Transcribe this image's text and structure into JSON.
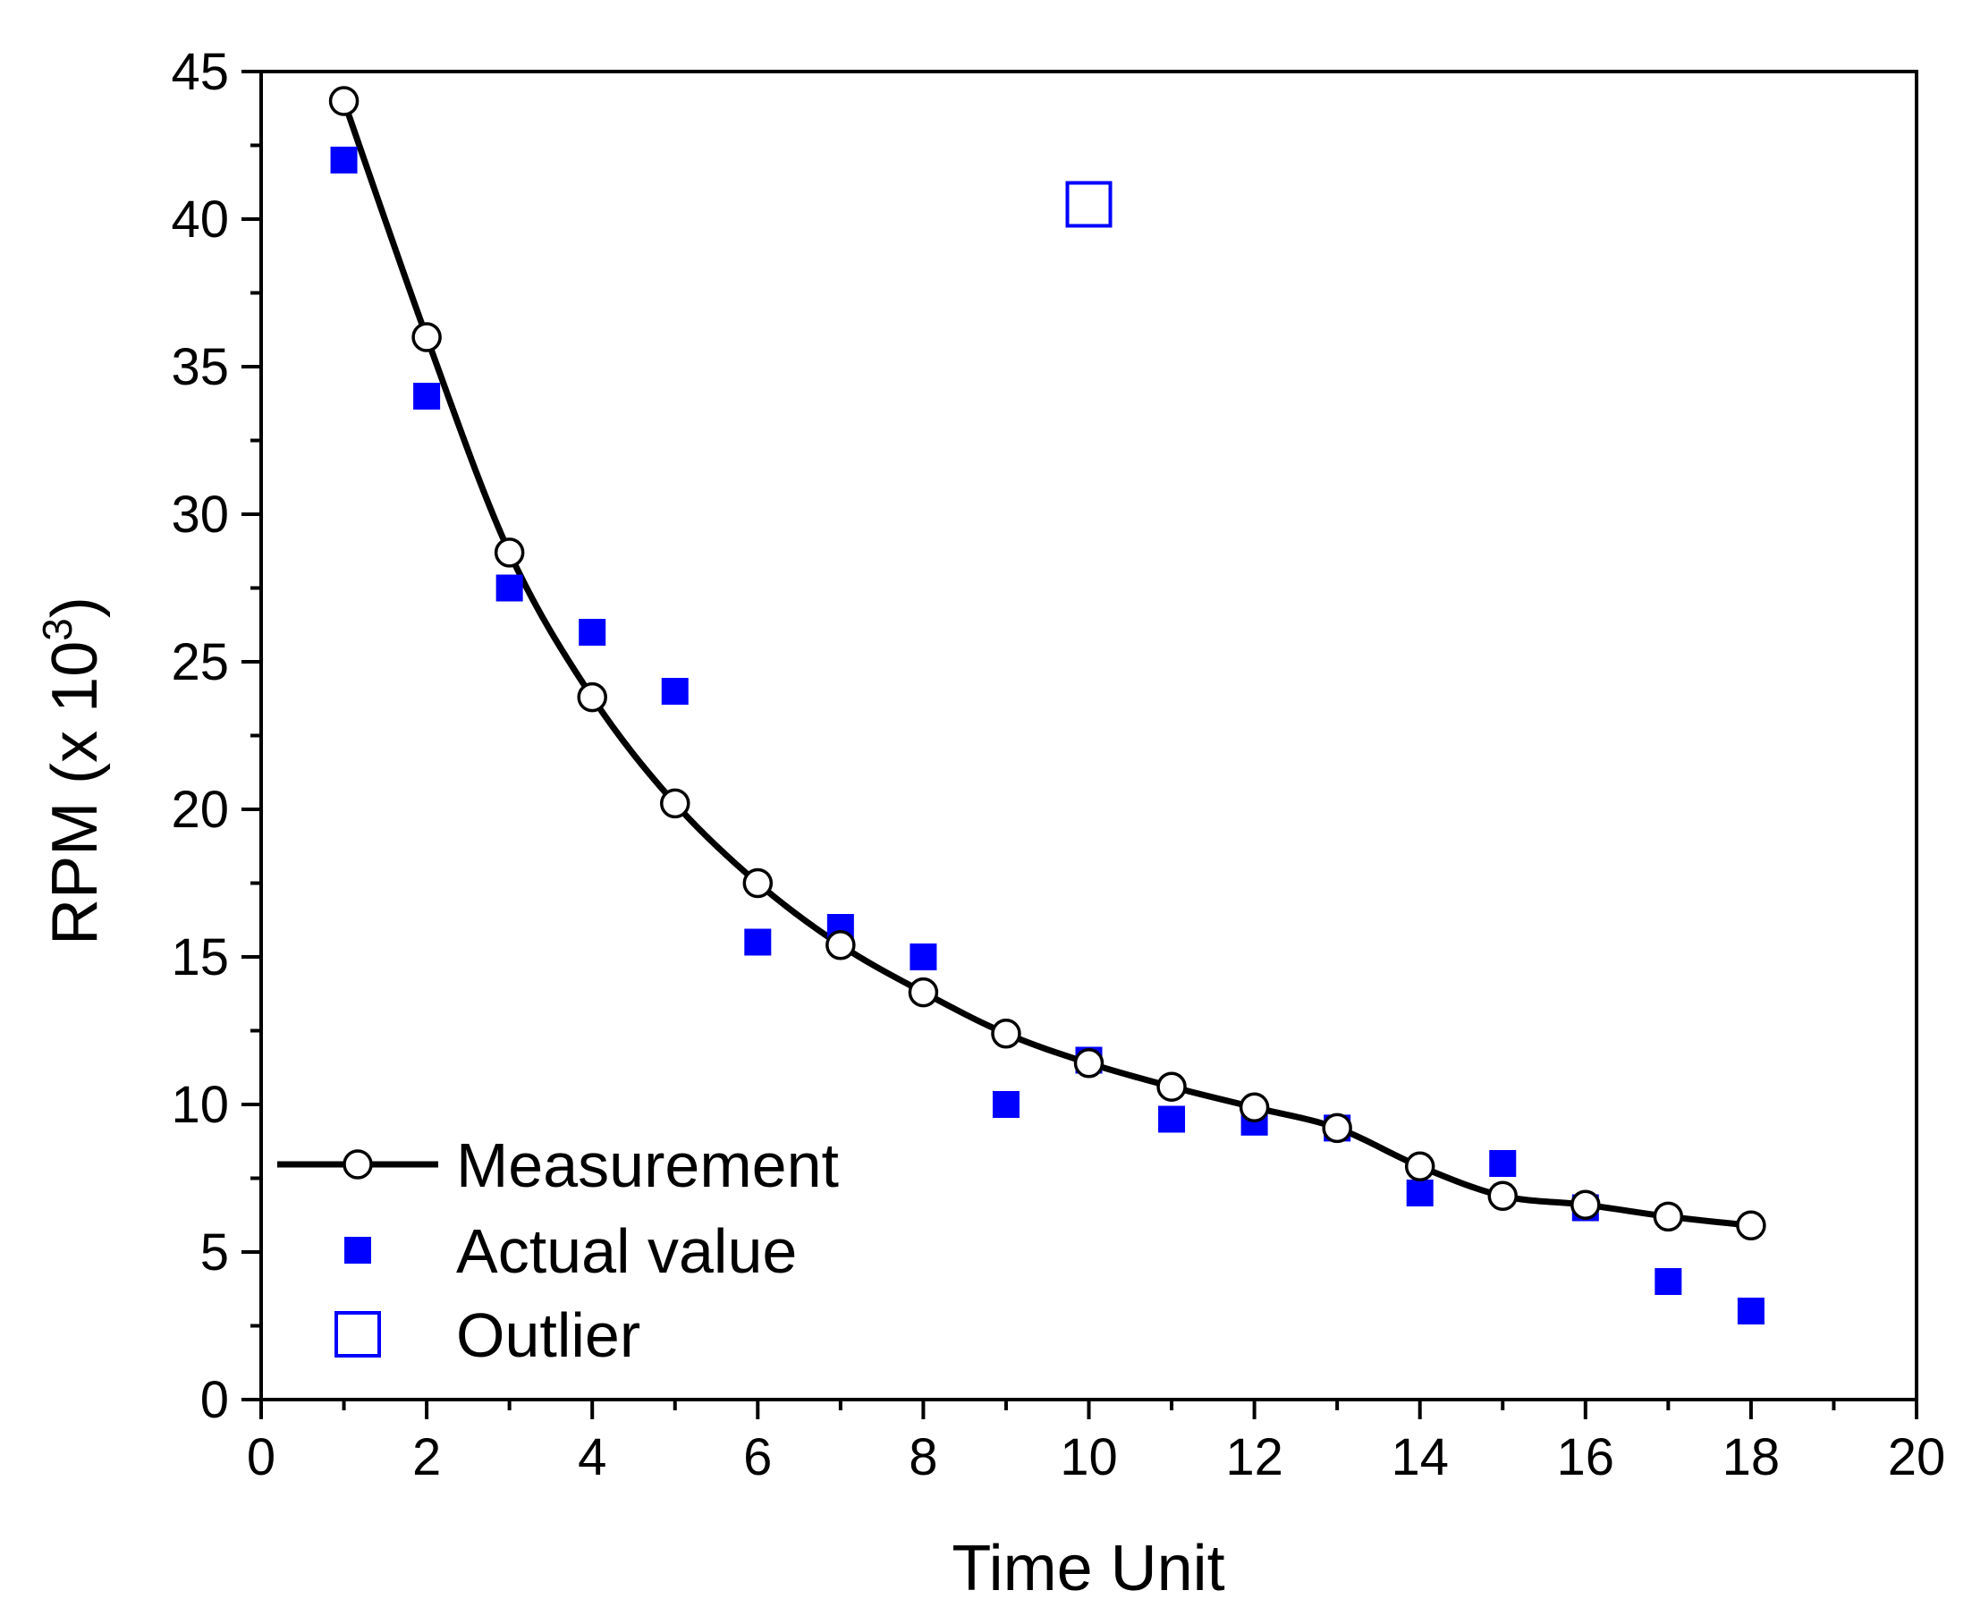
{
  "chart_data": {
    "type": "scatter",
    "title": "",
    "xlabel": "Time Unit",
    "ylabel_main": "RPM (x 10",
    "ylabel_sup": "3",
    "ylabel_close": ")",
    "xlim": [
      0,
      20
    ],
    "ylim": [
      0,
      45
    ],
    "x_ticks": [
      "0",
      "2",
      "4",
      "6",
      "8",
      "10",
      "12",
      "14",
      "16",
      "18",
      "20"
    ],
    "y_ticks": [
      "0",
      "5",
      "10",
      "15",
      "20",
      "25",
      "30",
      "35",
      "40",
      "45"
    ],
    "grid": false,
    "legend_position": "bottom-left",
    "series": [
      {
        "name": "Measurement",
        "style": "line with open circle markers",
        "color": "#000000",
        "x": [
          1,
          2,
          3,
          4,
          5,
          6,
          7,
          8,
          9,
          10,
          11,
          12,
          13,
          14,
          15,
          16,
          17,
          18
        ],
        "y": [
          44,
          36,
          28.7,
          23.8,
          20.2,
          17.5,
          15.4,
          13.8,
          12.4,
          11.4,
          10.6,
          9.9,
          9.2,
          7.9,
          6.9,
          6.6,
          6.2,
          5.9
        ]
      },
      {
        "name": "Actual value",
        "style": "filled square markers",
        "color": "#0000ff",
        "x": [
          1,
          2,
          3,
          4,
          5,
          6,
          7,
          8,
          9,
          10,
          11,
          12,
          13,
          14,
          15,
          16,
          17,
          18
        ],
        "y": [
          42,
          34,
          27.5,
          26,
          24,
          15.5,
          16,
          15,
          10,
          11.5,
          9.5,
          9.4,
          9.2,
          7,
          8,
          6.5,
          4,
          3
        ]
      },
      {
        "name": "Outlier",
        "style": "open square marker",
        "color": "#0000ff",
        "x": [
          10
        ],
        "y": [
          40.5
        ]
      }
    ]
  }
}
